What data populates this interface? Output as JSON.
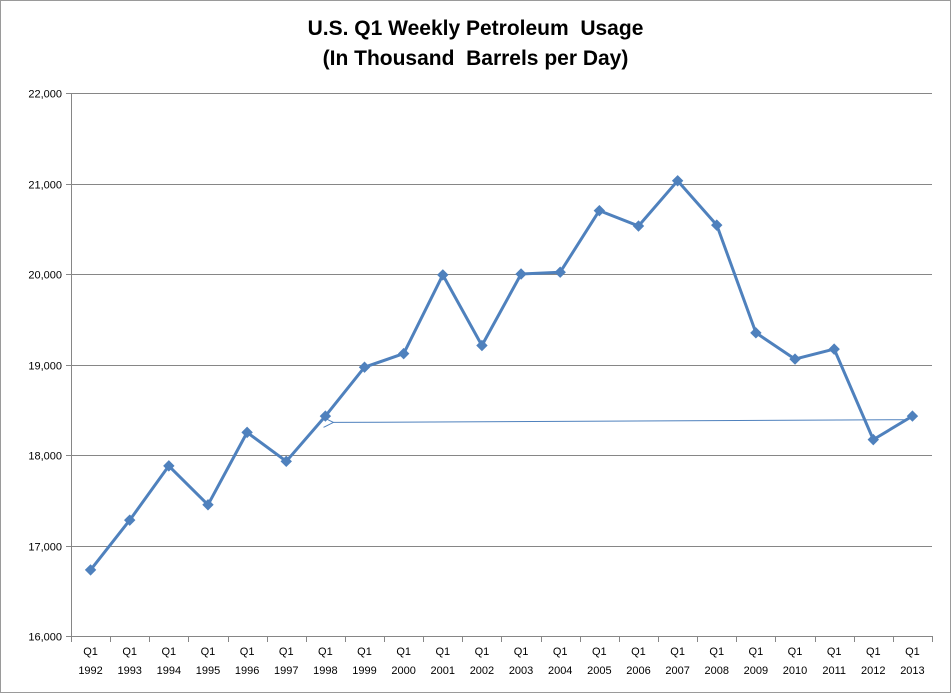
{
  "chart_data": {
    "type": "line",
    "title": [
      "U.S. Q1 Weekly Petroleum  Usage",
      "(In Thousand  Barrels per Day)"
    ],
    "categories": [
      [
        "Q1",
        "1992"
      ],
      [
        "Q1",
        "1993"
      ],
      [
        "Q1",
        "1994"
      ],
      [
        "Q1",
        "1995"
      ],
      [
        "Q1",
        "1996"
      ],
      [
        "Q1",
        "1997"
      ],
      [
        "Q1",
        "1998"
      ],
      [
        "Q1",
        "1999"
      ],
      [
        "Q1",
        "2000"
      ],
      [
        "Q1",
        "2001"
      ],
      [
        "Q1",
        "2002"
      ],
      [
        "Q1",
        "2003"
      ],
      [
        "Q1",
        "2004"
      ],
      [
        "Q1",
        "2005"
      ],
      [
        "Q1",
        "2006"
      ],
      [
        "Q1",
        "2007"
      ],
      [
        "Q1",
        "2008"
      ],
      [
        "Q1",
        "2009"
      ],
      [
        "Q1",
        "2010"
      ],
      [
        "Q1",
        "2011"
      ],
      [
        "Q1",
        "2012"
      ],
      [
        "Q1",
        "2013"
      ]
    ],
    "values": [
      16730,
      17280,
      17880,
      17450,
      18250,
      17930,
      18430,
      18970,
      19120,
      19990,
      19210,
      20000,
      20020,
      20700,
      20530,
      21030,
      20540,
      19350,
      19060,
      19170,
      18170,
      18430
    ],
    "ylim": [
      16000,
      22000
    ],
    "yticks": [
      16000,
      17000,
      18000,
      19000,
      20000,
      21000,
      22000
    ],
    "ytick_labels": [
      "16,000",
      "17,000",
      "18,000",
      "19,000",
      "20,000",
      "21,000",
      "22,000"
    ],
    "grid": true,
    "annotations": [
      {
        "type": "arrow",
        "from_category_index": 21,
        "from_value": 18390,
        "to_category_index": 6,
        "to_value": 18360
      }
    ],
    "colors": {
      "line": "#4f81bd",
      "grid": "#868686",
      "axis": "#868686"
    }
  }
}
